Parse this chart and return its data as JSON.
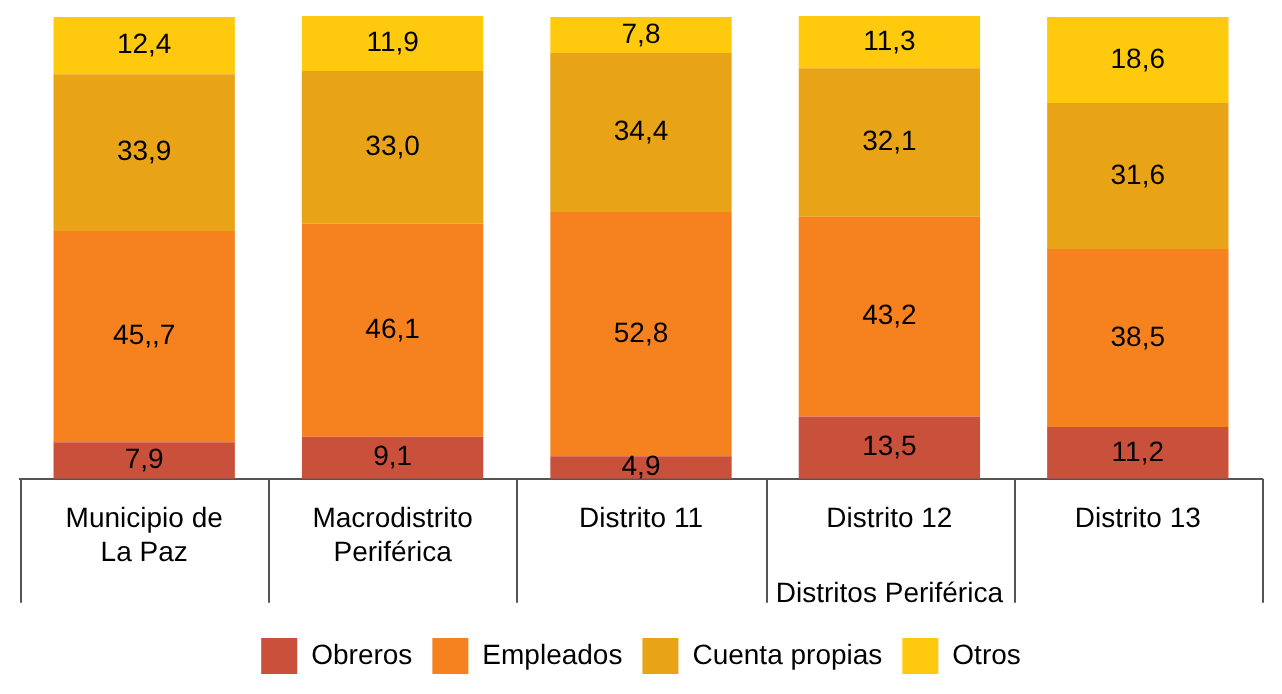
{
  "chart_data": {
    "type": "bar",
    "stacked": true,
    "data_labels": true,
    "legend": "bottom",
    "categories": [
      "Municipio de La Paz",
      "Macrodistrito Periférica",
      "Distrito 11",
      "Distrito 12",
      "Distrito 13"
    ],
    "series": [
      {
        "name": "Obreros",
        "color": "#c9503b",
        "values": [
          7.9,
          9.1,
          4.9,
          13.5,
          11.2
        ],
        "value_labels": [
          "7,9",
          "9,1",
          "4,9",
          "13,5",
          "11,2"
        ]
      },
      {
        "name": "Empleados",
        "color": "#f5821f",
        "values": [
          45.7,
          46.1,
          52.8,
          43.2,
          38.5
        ],
        "value_labels": [
          "45,,7",
          "46,1",
          "52,8",
          "43,2",
          "38,5"
        ]
      },
      {
        "name": "Cuenta propias",
        "color": "#e8a317",
        "values": [
          33.9,
          33.0,
          34.4,
          32.1,
          31.6
        ],
        "value_labels": [
          "33,9",
          "33,0",
          "34,4",
          "32,1",
          "31,6"
        ]
      },
      {
        "name": "Otros",
        "color": "#ffc90e",
        "values": [
          12.4,
          11.9,
          7.8,
          11.3,
          18.6
        ],
        "value_labels": [
          "12,4",
          "11,9",
          "7,8",
          "11,3",
          "18,6"
        ]
      }
    ],
    "annotations": [
      "Distritos Periférica"
    ]
  }
}
